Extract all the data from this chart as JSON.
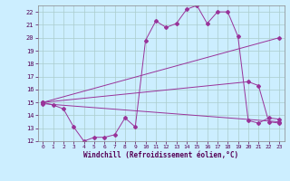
{
  "xlabel": "Windchill (Refroidissement éolien,°C)",
  "bg_color": "#cceeff",
  "grid_color": "#aacccc",
  "line_color": "#993399",
  "xlim": [
    -0.5,
    23.5
  ],
  "ylim": [
    12,
    22.5
  ],
  "xticks": [
    0,
    1,
    2,
    3,
    4,
    5,
    6,
    7,
    8,
    9,
    10,
    11,
    12,
    13,
    14,
    15,
    16,
    17,
    18,
    19,
    20,
    21,
    22,
    23
  ],
  "yticks": [
    12,
    13,
    14,
    15,
    16,
    17,
    18,
    19,
    20,
    21,
    22
  ],
  "line1_x": [
    0,
    1,
    2,
    3,
    4,
    5,
    6,
    7,
    8,
    9,
    10,
    11,
    12,
    13,
    14,
    15,
    16,
    17,
    18,
    19,
    20,
    21,
    22,
    23
  ],
  "line1_y": [
    15.0,
    14.8,
    14.5,
    13.1,
    12.0,
    12.3,
    12.3,
    12.5,
    13.8,
    13.1,
    19.8,
    21.3,
    20.8,
    21.1,
    22.2,
    22.5,
    21.1,
    22.0,
    22.0,
    20.1,
    13.6,
    13.4,
    13.8,
    13.7
  ],
  "line2_x": [
    0,
    23
  ],
  "line2_y": [
    15.0,
    20.0
  ],
  "line3_x": [
    0,
    20,
    21,
    22,
    23
  ],
  "line3_y": [
    15.0,
    16.6,
    16.3,
    13.5,
    13.4
  ],
  "line4_x": [
    0,
    23
  ],
  "line4_y": [
    14.9,
    13.5
  ]
}
